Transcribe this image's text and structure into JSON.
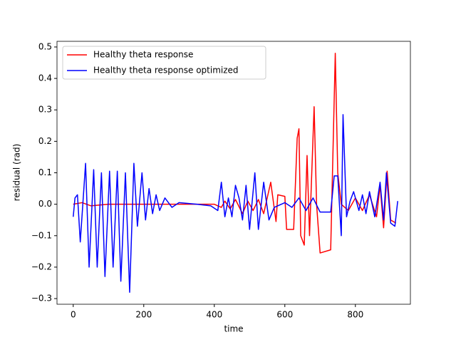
{
  "chart_data": {
    "type": "line",
    "xlabel": "time",
    "ylabel": "residual (rad)",
    "xlim": [
      -46,
      956
    ],
    "ylim": [
      -0.318,
      0.518
    ],
    "xticks": [
      0,
      200,
      400,
      600,
      800
    ],
    "yticks": [
      {
        "value": -0.3,
        "label": "−0.3"
      },
      {
        "value": -0.2,
        "label": "−0.2"
      },
      {
        "value": -0.1,
        "label": "−0.1"
      },
      {
        "value": 0,
        "label": "0.0"
      },
      {
        "value": 0.1,
        "label": "0.1"
      },
      {
        "value": 0.2,
        "label": "0.2"
      },
      {
        "value": 0.3,
        "label": "0.3"
      },
      {
        "value": 0.4,
        "label": "0.4"
      },
      {
        "value": 0.5,
        "label": "0.5"
      }
    ],
    "legend": "upper left",
    "series": [
      {
        "name": "Healthy theta response",
        "color": "#ff0000",
        "x": [
          0,
          25,
          50,
          100,
          200,
          400,
          420,
          430,
          445,
          460,
          480,
          495,
          510,
          525,
          540,
          560,
          575,
          580,
          600,
          605,
          625,
          635,
          640,
          645,
          655,
          663,
          670,
          683,
          690,
          700,
          730,
          743,
          750,
          760,
          780,
          800,
          820,
          840,
          860,
          870,
          880,
          890,
          900,
          915
        ],
        "values": [
          0,
          0.005,
          -0.005,
          0,
          0,
          0,
          -0.01,
          0.01,
          -0.015,
          0.015,
          -0.03,
          0.01,
          -0.02,
          0.015,
          -0.03,
          0.07,
          -0.055,
          0.03,
          0.025,
          -0.08,
          -0.08,
          0.21,
          0.24,
          -0.1,
          -0.13,
          0.155,
          -0.1,
          0.31,
          0,
          -0.155,
          -0.145,
          0.48,
          0.1,
          0,
          -0.02,
          0.02,
          -0.02,
          0.03,
          -0.04,
          0.06,
          -0.075,
          0.105,
          -0.05,
          -0.06
        ]
      },
      {
        "name": "Healthy theta response optimized",
        "color": "#0000ff",
        "x": [
          0,
          5,
          12,
          20,
          35,
          45,
          58,
          68,
          80,
          90,
          103,
          113,
          125,
          135,
          148,
          160,
          172,
          182,
          195,
          205,
          215,
          225,
          235,
          245,
          260,
          280,
          300,
          350,
          390,
          410,
          420,
          430,
          440,
          450,
          460,
          470,
          480,
          490,
          500,
          515,
          525,
          540,
          555,
          570,
          600,
          620,
          640,
          660,
          680,
          700,
          730,
          740,
          750,
          760,
          765,
          775,
          785,
          795,
          810,
          820,
          830,
          840,
          855,
          870,
          880,
          888,
          900,
          912,
          920
        ],
        "values": [
          -0.04,
          0.02,
          0.03,
          -0.12,
          0.13,
          -0.2,
          0.11,
          -0.2,
          0.1,
          -0.23,
          0.105,
          -0.2,
          0.105,
          -0.245,
          0.1,
          -0.28,
          0.13,
          -0.07,
          0.1,
          -0.05,
          0.05,
          -0.03,
          0.03,
          -0.02,
          0.02,
          -0.01,
          0.005,
          0,
          -0.005,
          -0.02,
          0.07,
          -0.04,
          0.02,
          -0.04,
          0.06,
          0.02,
          -0.05,
          0.06,
          -0.08,
          0.1,
          -0.08,
          0.07,
          -0.05,
          -0.01,
          0.005,
          -0.01,
          0.02,
          -0.02,
          0.02,
          -0.025,
          -0.025,
          0.09,
          0.09,
          -0.1,
          0.285,
          -0.04,
          0.01,
          0.04,
          -0.02,
          0.03,
          -0.03,
          0.04,
          -0.04,
          0.07,
          -0.05,
          0.1,
          -0.06,
          -0.07,
          0.01
        ]
      }
    ]
  }
}
